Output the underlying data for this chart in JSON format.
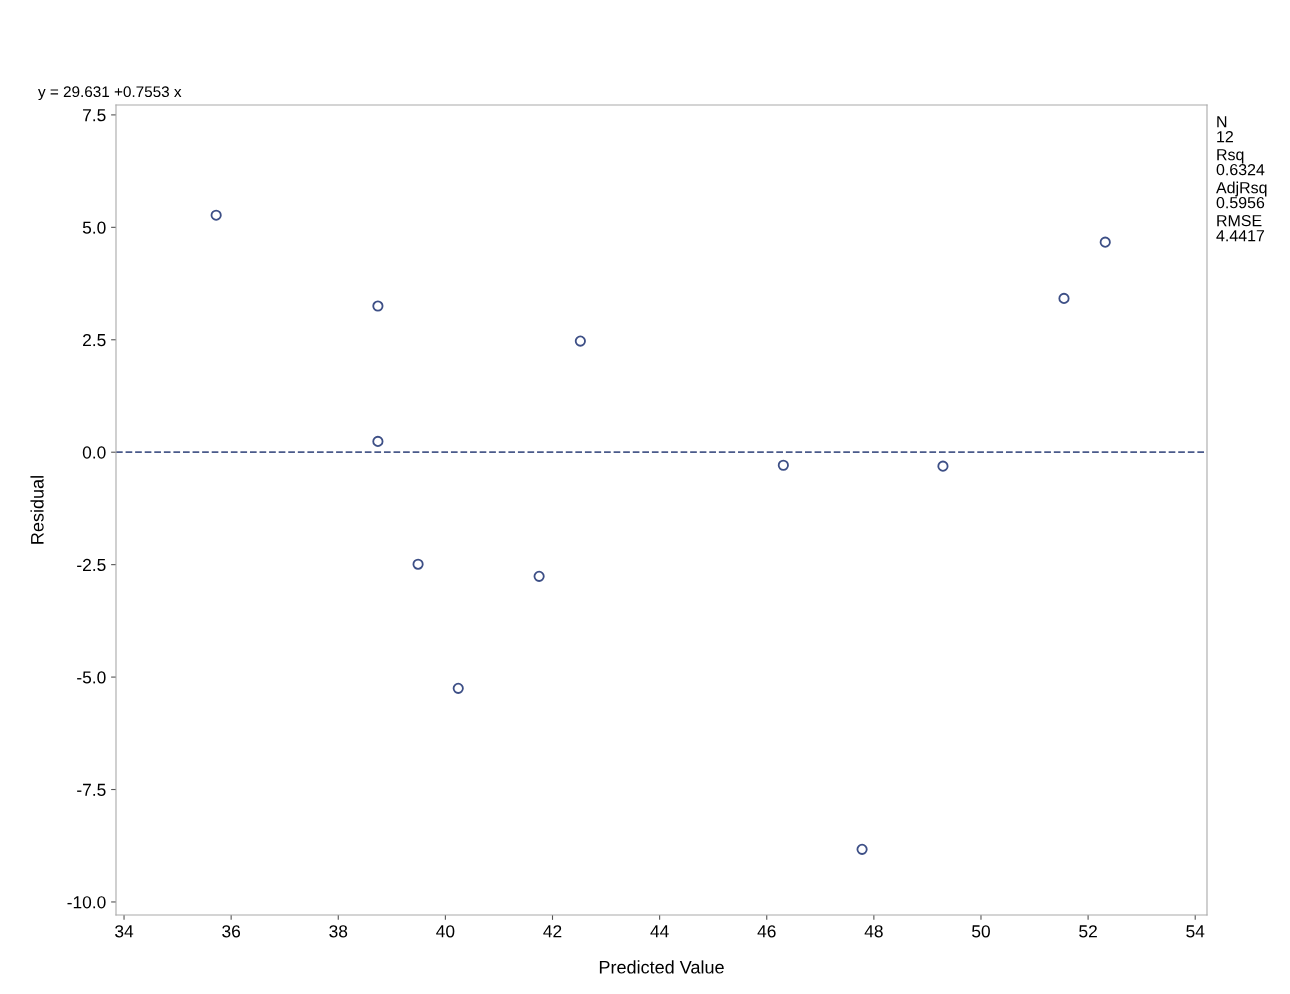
{
  "chart_data": {
    "type": "scatter",
    "xlabel": "Predicted Value",
    "ylabel": "Residual",
    "annotations": [
      "y = 29.631 +0.7553 x",
      "N",
      "12",
      "Rsq",
      "0.6324",
      "AdjRsq",
      "0.5956",
      "RMSE",
      "4.4417"
    ],
    "x": [
      35.72,
      38.74,
      38.74,
      39.49,
      40.24,
      41.75,
      42.52,
      46.31,
      47.78,
      49.29,
      51.55,
      52.32
    ],
    "series": [
      {
        "color": "#3d4f86",
        "values": [
          5.27,
          3.25,
          0.24,
          -2.49,
          -5.25,
          -2.76,
          2.47,
          -0.29,
          -8.83,
          -0.31,
          3.42,
          4.67
        ]
      }
    ],
    "marker": "circle",
    "xlim": [
      33.85,
      54.22
    ],
    "xticks": [
      34,
      36,
      38,
      40,
      42,
      44,
      46,
      48,
      50,
      52,
      54
    ],
    "ylim": [
      -10.29,
      7.72
    ],
    "yticks": [
      {
        "value": -10,
        "label": "-10.0"
      },
      {
        "value": -7.5,
        "label": "-7.5"
      },
      {
        "value": -5,
        "label": "-5.0"
      },
      {
        "value": -2.5,
        "label": "-2.5"
      },
      {
        "value": 0,
        "label": "0.0"
      },
      {
        "value": 2.5,
        "label": "2.5"
      },
      {
        "value": 5,
        "label": "5.0"
      },
      {
        "value": 7.5,
        "label": "7.5"
      }
    ],
    "ref_lines": [
      {
        "axis": "y",
        "value": 0,
        "label": null,
        "color": "#4a5a8a",
        "line_style": "dashed"
      }
    ],
    "grid": false,
    "legend": false
  }
}
